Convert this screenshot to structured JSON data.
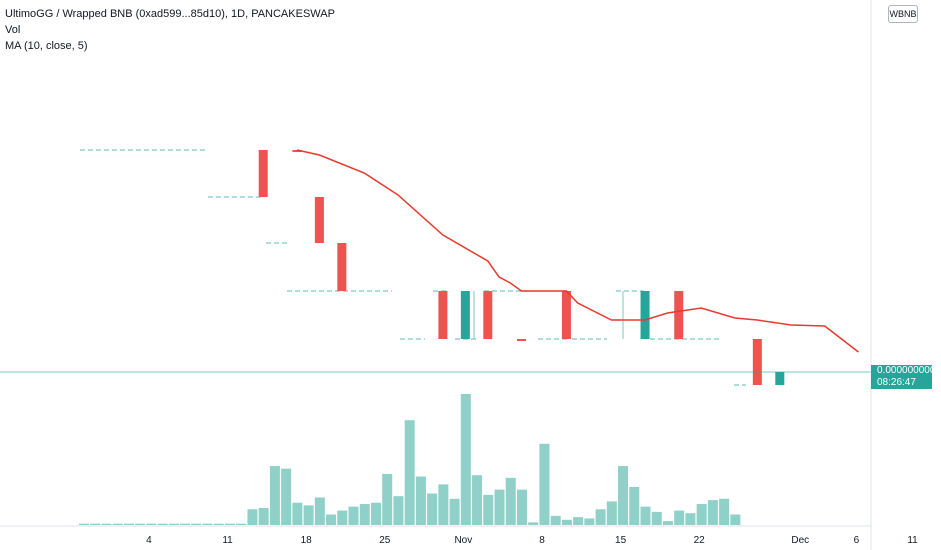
{
  "legend": {
    "title": "UltimoGG / Wrapped BNB (0xad599...85d10), 1D, PANCAKESWAP",
    "vol": "Vol",
    "ma": "MA (10, close, 5)"
  },
  "currency_badge": "WBNB",
  "price_label": {
    "price": "0.0000000000",
    "countdown": "08:26:47"
  },
  "colors": {
    "up": "#26a69a",
    "down": "#ef5350",
    "volume": "#8fd0c8",
    "ma": "#e8392d",
    "price_line": "#26a69a",
    "gap": "#7ec8c0"
  },
  "chart_data": {
    "type": "candlestick",
    "x_axis_ticks": [
      {
        "label": "4",
        "day": 4
      },
      {
        "label": "11",
        "day": 11
      },
      {
        "label": "18",
        "day": 18
      },
      {
        "label": "25",
        "day": 25
      },
      {
        "label": "Nov",
        "day": 32
      },
      {
        "label": "8",
        "day": 39
      },
      {
        "label": "15",
        "day": 46
      },
      {
        "label": "22",
        "day": 53
      },
      {
        "label": "Dec",
        "day": 62
      },
      {
        "label": "6",
        "day": 67
      },
      {
        "label": "11",
        "day": 72
      }
    ],
    "price_levels": {
      "L1": 150,
      "L2": 197,
      "L3": 243,
      "L4": 291,
      "L5": 339,
      "L6": 385
    },
    "candles": [
      {
        "day": 14,
        "open": "L1",
        "close": "L2"
      },
      {
        "day": 17,
        "open": "L1",
        "close": "L1"
      },
      {
        "day": 19,
        "open": "L2",
        "close": "L3"
      },
      {
        "day": 21,
        "open": "L3",
        "close": "L4"
      },
      {
        "day": 30,
        "open": "L4",
        "close": "L5"
      },
      {
        "day": 32,
        "open": "L5",
        "close": "L4"
      },
      {
        "day": 34,
        "open": "L4",
        "close": "L5"
      },
      {
        "day": 37,
        "open": "L5",
        "close": "L5"
      },
      {
        "day": 41,
        "open": "L4",
        "close": "L5"
      },
      {
        "day": 48,
        "open": "L5",
        "close": "L4"
      },
      {
        "day": 51,
        "open": "L4",
        "close": "L5"
      },
      {
        "day": 58,
        "open": "L5",
        "close": "L6"
      },
      {
        "day": 60,
        "open": "L6",
        "close": "L6b"
      }
    ],
    "ma": [
      [
        17,
        150
      ],
      [
        19,
        155
      ],
      [
        23,
        173
      ],
      [
        26,
        195
      ],
      [
        30,
        235
      ],
      [
        34,
        261
      ],
      [
        35,
        277
      ],
      [
        36,
        283
      ],
      [
        37,
        291
      ],
      [
        41,
        291
      ],
      [
        42,
        303
      ],
      [
        45,
        320
      ],
      [
        48,
        320
      ],
      [
        50,
        313
      ],
      [
        53,
        308
      ],
      [
        56,
        318
      ],
      [
        58,
        320
      ],
      [
        61,
        325
      ],
      [
        64,
        326
      ],
      [
        67,
        352
      ]
    ],
    "volume": [
      {
        "day": 0,
        "v": 1
      },
      {
        "day": 1,
        "v": 1
      },
      {
        "day": 2,
        "v": 1
      },
      {
        "day": 3,
        "v": 1
      },
      {
        "day": 4,
        "v": 1
      },
      {
        "day": 5,
        "v": 1
      },
      {
        "day": 6,
        "v": 1
      },
      {
        "day": 7,
        "v": 1
      },
      {
        "day": 8,
        "v": 1
      },
      {
        "day": 9,
        "v": 1
      },
      {
        "day": 10,
        "v": 1
      },
      {
        "day": 11,
        "v": 1
      },
      {
        "day": 12,
        "v": 1
      },
      {
        "day": 13,
        "v": 1
      },
      {
        "day": 14,
        "v": 1
      },
      {
        "day": 15,
        "v": 12
      },
      {
        "day": 16,
        "v": 13
      },
      {
        "day": 17,
        "v": 45
      },
      {
        "day": 18,
        "v": 43
      },
      {
        "day": 19,
        "v": 17
      },
      {
        "day": 20,
        "v": 15
      },
      {
        "day": 21,
        "v": 21
      },
      {
        "day": 22,
        "v": 8
      },
      {
        "day": 23,
        "v": 11
      },
      {
        "day": 24,
        "v": 14
      },
      {
        "day": 25,
        "v": 16
      },
      {
        "day": 26,
        "v": 17
      },
      {
        "day": 27,
        "v": 39
      },
      {
        "day": 28,
        "v": 22
      },
      {
        "day": 29,
        "v": 80
      },
      {
        "day": 30,
        "v": 37
      },
      {
        "day": 31,
        "v": 24
      },
      {
        "day": 32,
        "v": 31
      },
      {
        "day": 33,
        "v": 20
      },
      {
        "day": 34,
        "v": 100
      },
      {
        "day": 35,
        "v": 38
      },
      {
        "day": 36,
        "v": 23
      },
      {
        "day": 37,
        "v": 27
      },
      {
        "day": 38,
        "v": 36
      },
      {
        "day": 39,
        "v": 27
      },
      {
        "day": 40,
        "v": 2
      },
      {
        "day": 41,
        "v": 62
      },
      {
        "day": 42,
        "v": 7
      },
      {
        "day": 43,
        "v": 4
      },
      {
        "day": 44,
        "v": 6
      },
      {
        "day": 45,
        "v": 5
      },
      {
        "day": 46,
        "v": 12
      },
      {
        "day": 47,
        "v": 18
      },
      {
        "day": 48,
        "v": 45
      },
      {
        "day": 49,
        "v": 29
      },
      {
        "day": 50,
        "v": 14
      },
      {
        "day": 51,
        "v": 10
      },
      {
        "day": 52,
        "v": 3
      },
      {
        "day": 53,
        "v": 11
      },
      {
        "day": 54,
        "v": 9
      },
      {
        "day": 55,
        "v": 16
      },
      {
        "day": 56,
        "v": 19
      },
      {
        "day": 57,
        "v": 20
      },
      {
        "day": 58,
        "v": 8
      }
    ]
  }
}
